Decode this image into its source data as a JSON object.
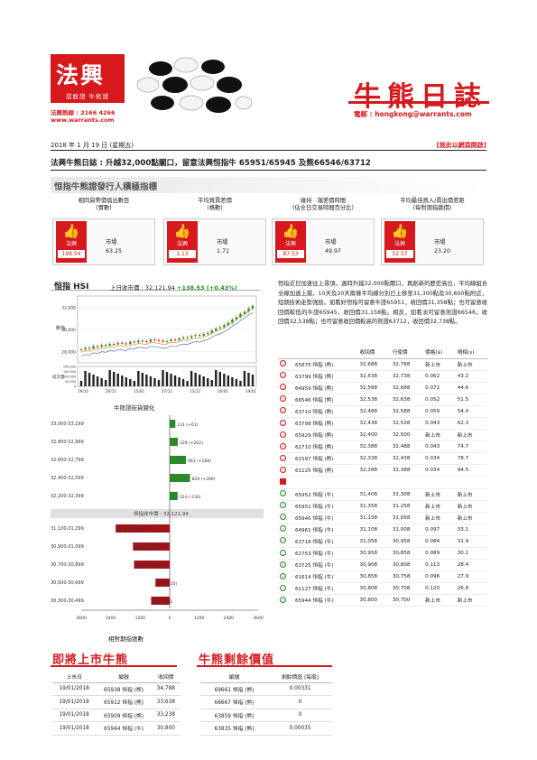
{
  "brand": {
    "logo_text": "法興",
    "logo_sub": "認股證 牛熊證",
    "hotline": "法興熱線 : 2166 4266",
    "website": "www.warrants.com",
    "title": "牛熊日誌",
    "email": "電郵 : hongkong@warrants.com"
  },
  "date": "2018 年 1 月 19 日 (星期五)",
  "web_link": "[按此以網頁開啟]",
  "headline": "法興牛熊日誌 : 升越32,000點關口，留意法興恒指牛 65951/65945 及熊66546/63712",
  "indicators_title": "恒指牛熊證發行人積極指標",
  "indicators": [
    {
      "title": "相同貨幣價值出數目\n(實數)",
      "issuer_label": "法興",
      "issuer_value": "199.54",
      "market_label": "市場",
      "market_value": "63.25"
    },
    {
      "title": "平均買賣差價\n(格數)",
      "issuer_label": "法興",
      "issuer_value": "1.13",
      "market_label": "市場",
      "market_value": "1.71"
    },
    {
      "title": "維持　報差價時間\n(佔全日交易時間百分比)",
      "issuer_label": "法興",
      "issuer_value": "87.53",
      "market_label": "市場",
      "market_value": "49.97"
    },
    {
      "title": "平均最佳買入/賣出價差距\n(每對期指跳價)",
      "issuer_label": "法興",
      "issuer_value": "52.57",
      "market_label": "市場",
      "market_value": "23.20"
    }
  ],
  "hsi": {
    "name": "恒指 HSI",
    "close_label": "上日收市價 :",
    "close_value": "32,121.94",
    "change": "+138.53 (+0.43%)"
  },
  "paragraph": "恒指近日加速往上尋頂，週四升越32,000點關口，再創新的歷史高位，平均線組合全線加速上揚，10天及20天兩條平均線分別已上移至31,300點及30,600點附近，短期技術走勢強勁。如看好恒指可留意牛證65951，收回價31,358點；也可留意收回價較低的牛證65945，收回價31,158點。相反，如看淡可留意熊證66546，收回價32,538點；也可留意收回價較高的熊證63712，收回價32,738點。",
  "table": {
    "headers": [
      "",
      "",
      "收回價",
      "行使價",
      "價格($)",
      "槓桿(x)"
    ],
    "bear_rows": [
      [
        "65875 恒指 (熊)",
        "32,688",
        "32,788",
        "新上市",
        "新上市"
      ],
      [
        "63799 恒指 (熊)",
        "32,638",
        "32,738",
        "0.062",
        "43.2"
      ],
      [
        "64959 恒指 (熊)",
        "32,588",
        "32,688",
        "0.072",
        "44.6"
      ],
      [
        "66546 恒指 (熊)",
        "32,538",
        "32,638",
        "0.052",
        "51.5"
      ],
      [
        "63710 恒指 (熊)",
        "32,488",
        "32,588",
        "0.059",
        "54.4"
      ],
      [
        "63798 恒指 (熊)",
        "32,438",
        "32,538",
        "0.043",
        "62.3"
      ],
      [
        "65929 恒指 (熊)",
        "32,400",
        "32,500",
        "新上市",
        "新上市"
      ],
      [
        "62710 恒指 (熊)",
        "32,388",
        "32,488",
        "0.043",
        "74.7"
      ],
      [
        "61597 恒指 (熊)",
        "32,338",
        "32,438",
        "0.034",
        "78.7"
      ],
      [
        "61125 恒指 (熊)",
        "32,288",
        "32,388",
        "0.034",
        "94.5"
      ]
    ],
    "bull_rows": [
      [
        "65952 恒指 (牛)",
        "31,408",
        "31,308",
        "新上市",
        "新上市"
      ],
      [
        "65951 恒指 (牛)",
        "31,358",
        "31,258",
        "新上市",
        "新上市"
      ],
      [
        "65945 恒指 (牛)",
        "31,158",
        "31,058",
        "新上市",
        "新上市"
      ],
      [
        "64961 恒指 (牛)",
        "31,108",
        "31,008",
        "0.097",
        "33.1"
      ],
      [
        "63718 恒指 (牛)",
        "31,058",
        "30,958",
        "0.084",
        "31.9"
      ],
      [
        "62753 恒指 (牛)",
        "30,958",
        "30,858",
        "0.089",
        "30.1"
      ],
      [
        "63725 恒指 (牛)",
        "30,908",
        "30,808",
        "0.113",
        "28.4"
      ],
      [
        "61614 恒指 (牛)",
        "30,858",
        "30,758",
        "0.096",
        "27.9"
      ],
      [
        "61127 恒指 (牛)",
        "30,808",
        "30,708",
        "0.120",
        "26.8"
      ],
      [
        "65944 恒指 (牛)",
        "30,800",
        "30,700",
        "新上市",
        "新上市"
      ]
    ]
  },
  "chart_titles": {
    "bear_street": "牛熊證街貨變化",
    "distribution": "相對期指張數"
  },
  "chart_data": [
    {
      "type": "line",
      "title": "",
      "ylim": [
        27000,
        33000
      ],
      "y_ticks": [
        "32,000",
        "30,000",
        "28,000"
      ],
      "ylabel": "數值",
      "x_ticks": [
        "29/10",
        "20/11",
        "15/01",
        "27/12",
        "13/12",
        "20/01",
        "19/01"
      ],
      "volume_ticks": [
        "200,000",
        "150,000",
        "100,000",
        "50,000",
        "0"
      ],
      "volume_label": "成交量",
      "close_series": [
        28200,
        28350,
        28300,
        28500,
        28450,
        28600,
        28550,
        28700,
        28650,
        28800,
        28750,
        28700,
        28900,
        28850,
        29000,
        28950,
        28900,
        29100,
        29050,
        29000,
        28900,
        28950,
        29100,
        29050,
        29200,
        29300,
        29250,
        29400,
        29500,
        29450,
        29600,
        29700,
        29900,
        30100,
        30200,
        30400,
        30600,
        30900,
        31100,
        31400,
        31600,
        31900,
        32121
      ]
    },
    {
      "type": "bar",
      "title": "",
      "orientation": "horizontal",
      "categories": [
        "33,000-33,199",
        "32,800-32,999",
        "32,600-32,799",
        "32,400-32,599",
        "32,200-32,399",
        "31,100-31,299",
        "30,900-31,099",
        "30,700-30,899",
        "30,500-30,699",
        "30,300-30,499"
      ],
      "values": [
        231,
        329,
        661,
        829,
        324,
        -2198,
        -1495,
        -1452,
        -580,
        -755
      ],
      "labels": [
        "231 (+61)",
        "329 (+202)",
        "661 (+168)",
        "829 (+396)",
        "324 (-230)",
        "2198 (+1357)",
        "1495 (+121)",
        "1452 (+281)",
        "580 (+20)",
        "755 (+66)"
      ],
      "green": "#2a8a2a",
      "red": "#a01418",
      "mid_label": "恒指收市價 : 32,121.94",
      "xlim": [
        -3600,
        3600
      ],
      "x_ticks": [
        "3600",
        "2400",
        "1200",
        "0",
        "1200",
        "2400",
        "3600"
      ]
    }
  ],
  "upcoming": {
    "title": "即將上市牛熊",
    "headers": [
      "上市日",
      "編號",
      "收回價"
    ],
    "rows": [
      [
        "19/01/2018",
        "65938 恒指 (熊)",
        "34,788"
      ],
      [
        "19/01/2018",
        "65912 恒指 (熊)",
        "33,638"
      ],
      [
        "19/01/2018",
        "65909 恒指 (熊)",
        "33,238"
      ],
      [
        "19/01/2018",
        "65944 恒指 (牛)",
        "30,800"
      ]
    ]
  },
  "residual": {
    "title": "牛熊剩餘價值",
    "headers": [
      "編號",
      "剩餘價值 (每股)"
    ],
    "rows": [
      [
        "69661 恒指 (熊)",
        "0.00331"
      ],
      [
        "68667 恒指 (熊)",
        "0"
      ],
      [
        "63859 恒指 (熊)",
        "0"
      ],
      [
        "63835 恒指 (熊)",
        "0.00035"
      ]
    ]
  }
}
